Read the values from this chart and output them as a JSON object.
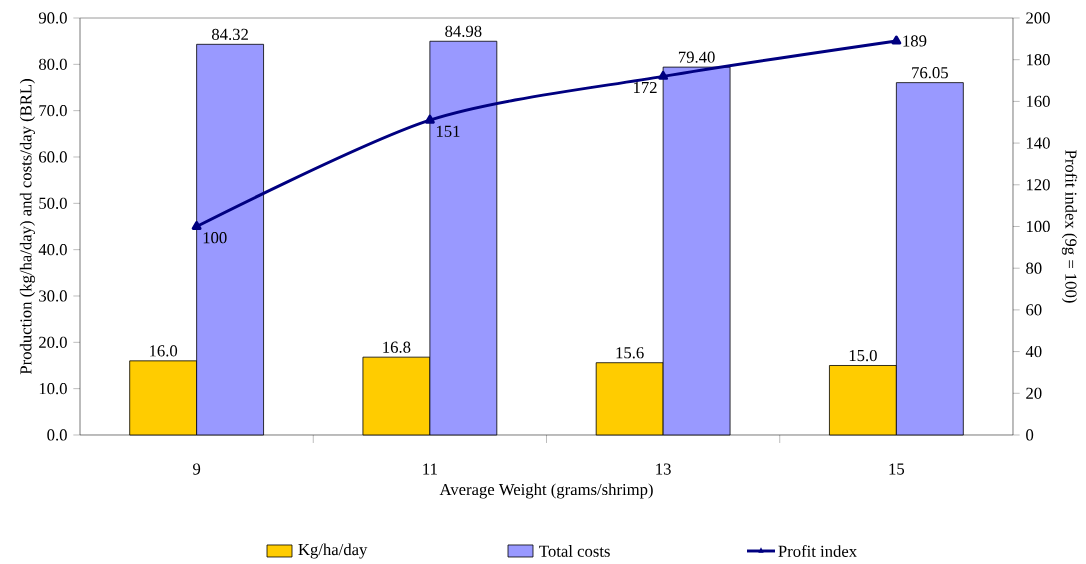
{
  "chart_data": {
    "type": "bar",
    "xlabel": "Average Weight (grams/shrimp)",
    "ylabel": "Production (kg/ha/day) and costs/day (BRL)",
    "y2label": "Profit index (9g = 100)",
    "categories": [
      "9",
      "11",
      "13",
      "15"
    ],
    "series": [
      {
        "name": "Kg/ha/day",
        "color": "#ffcc00",
        "values": [
          16.0,
          16.8,
          15.6,
          15.0
        ],
        "value_labels": [
          "16.0",
          "16.8",
          "15.6",
          "15.0"
        ]
      },
      {
        "name": "Total costs",
        "color": "#9999ff",
        "values": [
          84.32,
          84.98,
          79.4,
          76.05
        ],
        "value_labels": [
          "84.32",
          "84.98",
          "79.40",
          "76.05"
        ]
      },
      {
        "name": "Profit index",
        "type": "line",
        "axis": "y2",
        "color": "#000080",
        "values": [
          100,
          151,
          172,
          189
        ],
        "value_labels": [
          "100",
          "151",
          "172",
          "189"
        ]
      }
    ],
    "marker": "triangle",
    "legend": "bottom",
    "grid": false,
    "ylim": [
      0,
      90
    ],
    "yticks": [
      {
        "value": 0,
        "label": "0.0"
      },
      {
        "value": 10,
        "label": "10.0"
      },
      {
        "value": 20,
        "label": "20.0"
      },
      {
        "value": 30,
        "label": "30.0"
      },
      {
        "value": 40,
        "label": "40.0"
      },
      {
        "value": 50,
        "label": "50.0"
      },
      {
        "value": 60,
        "label": "60.0"
      },
      {
        "value": 70,
        "label": "70.0"
      },
      {
        "value": 80,
        "label": "80.0"
      },
      {
        "value": 90,
        "label": "90.0"
      }
    ],
    "y2lim": [
      0,
      200
    ],
    "y2ticks": [
      0,
      20,
      40,
      60,
      80,
      100,
      120,
      140,
      160,
      180,
      200
    ]
  }
}
